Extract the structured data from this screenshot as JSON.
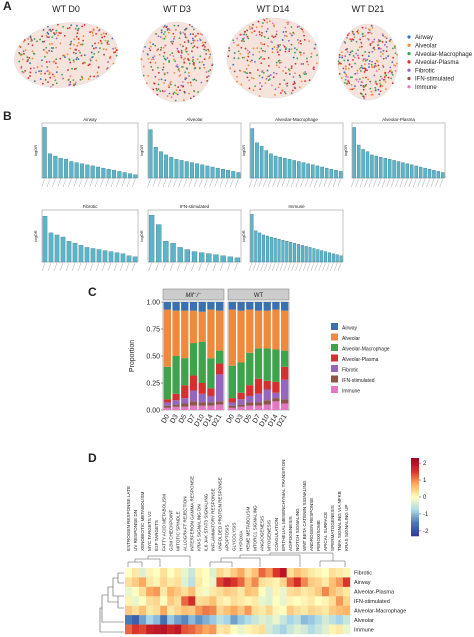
{
  "panel_labels": [
    "A",
    "B",
    "C",
    "D"
  ],
  "panel_a": {
    "titles": [
      "WT D0",
      "WT D3",
      "WT D14",
      "WT D21"
    ],
    "legend": [
      {
        "name": "Airway",
        "color": "#3a6fb0"
      },
      {
        "name": "Alveolar",
        "color": "#ef8a3c"
      },
      {
        "name": "Alveolar-Macrophage",
        "color": "#3fa34d"
      },
      {
        "name": "Alveolar-Plasma",
        "color": "#d62f2f"
      },
      {
        "name": "Fibrotic",
        "color": "#9467bd"
      },
      {
        "name": "IFN-stimulated",
        "color": "#8c564b"
      },
      {
        "name": "Immune",
        "color": "#e377c2"
      }
    ]
  },
  "chart_data": [
    {
      "type": "bar",
      "title": "Airway",
      "y_label": "logOR",
      "color": "#5bb5c8",
      "ylim": [
        0,
        5
      ],
      "values": [
        4.6,
        2.2,
        2.0,
        1.8,
        1.7,
        1.5,
        1.4,
        1.3,
        1.2,
        1.1,
        1.0,
        0.9,
        0.8,
        0.7,
        0.6,
        0.5,
        0.4,
        0.3
      ]
    },
    {
      "type": "bar",
      "title": "Alveolar",
      "y_label": "logOR",
      "color": "#5bb5c8",
      "ylim": [
        0,
        5
      ],
      "values": [
        4.4,
        2.8,
        2.4,
        2.1,
        1.9,
        1.7,
        1.6,
        1.5,
        1.4,
        1.3,
        1.2,
        1.1,
        1.0,
        0.9,
        0.8,
        0.7,
        0.6,
        0.5
      ]
    },
    {
      "type": "bar",
      "title": "Alveolar-Macrophage",
      "y_label": "logOR",
      "color": "#5bb5c8",
      "ylim": [
        0,
        5
      ],
      "values": [
        4.5,
        3.2,
        2.9,
        2.5,
        2.2,
        2.0,
        1.9,
        1.8,
        1.7,
        1.6,
        1.5,
        1.4,
        1.3,
        1.2,
        1.1,
        1.0,
        0.9,
        0.8,
        0.7,
        0.6
      ]
    },
    {
      "type": "bar",
      "title": "Alveolar-Plasma",
      "y_label": "logOR",
      "color": "#5bb5c8",
      "ylim": [
        0,
        5
      ],
      "values": [
        4.6,
        3.0,
        2.6,
        2.4,
        2.1,
        2.0,
        1.9,
        1.8,
        1.7,
        1.6,
        1.5,
        1.4,
        1.3,
        1.2,
        1.1,
        1.0,
        0.9,
        0.8,
        0.7,
        0.6,
        0.5
      ]
    },
    {
      "type": "bar",
      "title": "Fibrotic",
      "y_label": "logOR",
      "color": "#5bb5c8",
      "ylim": [
        0,
        5
      ],
      "values": [
        4.4,
        2.8,
        2.6,
        2.4,
        2.0,
        1.8,
        1.6,
        1.4,
        1.3,
        1.2,
        1.1,
        1.0,
        0.9,
        0.8,
        0.6,
        0.5
      ]
    },
    {
      "type": "bar",
      "title": "IFN-stimulated",
      "y_label": "logOR",
      "color": "#5bb5c8",
      "ylim": [
        0,
        5
      ],
      "values": [
        4.5,
        3.6,
        2.0,
        1.8,
        1.4,
        1.2,
        1.0,
        0.9,
        0.8,
        0.7,
        0.6,
        0.5,
        0.4
      ]
    },
    {
      "type": "bar",
      "title": "Immune",
      "y_label": "logOR",
      "color": "#5bb5c8",
      "ylim": [
        0,
        5
      ],
      "values": [
        4.6,
        3.0,
        2.8,
        2.6,
        2.5,
        2.4,
        2.3,
        2.2,
        2.1,
        2.0,
        1.9,
        1.8,
        1.7,
        1.6,
        1.5,
        1.4,
        1.3,
        1.2,
        1.1,
        1.0,
        0.9,
        0.8,
        0.7,
        0.6
      ]
    },
    {
      "type": "stacked_bar",
      "y_label": "Proportion",
      "facets": [
        "Mif⁻/⁻",
        "WT"
      ],
      "categories": [
        "D0",
        "D3",
        "D5",
        "D7",
        "D10",
        "D14",
        "D21",
        "D0",
        "D3",
        "D5",
        "D7",
        "D10",
        "D14",
        "D21"
      ],
      "ylim": [
        0,
        1
      ],
      "yticks": [
        {
          "value": 0,
          "label": "0.00"
        },
        {
          "value": 0.25,
          "label": "0.25"
        },
        {
          "value": 0.5,
          "label": "0.50"
        },
        {
          "value": 0.75,
          "label": "0.75"
        },
        {
          "value": 1,
          "label": "1.00"
        }
      ],
      "series": [
        {
          "name": "Airway",
          "color": "#3a6fb0",
          "values": [
            0.07,
            0.08,
            0.08,
            0.08,
            0.09,
            0.07,
            0.08,
            0.07,
            0.08,
            0.07,
            0.08,
            0.08,
            0.07,
            0.08
          ]
        },
        {
          "name": "Alveolar",
          "color": "#ef8a3c",
          "values": [
            0.53,
            0.42,
            0.44,
            0.3,
            0.28,
            0.45,
            0.37,
            0.52,
            0.48,
            0.4,
            0.35,
            0.35,
            0.37,
            0.37
          ]
        },
        {
          "name": "Alveolar-Macrophage",
          "color": "#3fa34d",
          "values": [
            0.3,
            0.35,
            0.25,
            0.3,
            0.38,
            0.28,
            0.12,
            0.3,
            0.28,
            0.3,
            0.28,
            0.3,
            0.3,
            0.15
          ]
        },
        {
          "name": "Alveolar-Plasma",
          "color": "#d62f2f",
          "values": [
            0.03,
            0.06,
            0.12,
            0.14,
            0.1,
            0.07,
            0.1,
            0.04,
            0.06,
            0.1,
            0.14,
            0.08,
            0.1,
            0.12
          ]
        },
        {
          "name": "Fibrotic",
          "color": "#9467bd",
          "values": [
            0.03,
            0.04,
            0.05,
            0.1,
            0.08,
            0.06,
            0.25,
            0.03,
            0.05,
            0.06,
            0.08,
            0.1,
            0.05,
            0.18
          ]
        },
        {
          "name": "IFN-stimulated",
          "color": "#8c564b",
          "values": [
            0.02,
            0.02,
            0.03,
            0.04,
            0.03,
            0.03,
            0.03,
            0.02,
            0.02,
            0.03,
            0.03,
            0.04,
            0.03,
            0.04
          ]
        },
        {
          "name": "Immune",
          "color": "#e377c2",
          "values": [
            0.02,
            0.03,
            0.03,
            0.04,
            0.04,
            0.04,
            0.05,
            0.02,
            0.03,
            0.04,
            0.04,
            0.05,
            0.08,
            0.06
          ]
        }
      ]
    },
    {
      "type": "heatmap",
      "clim": [
        -2.3,
        2.3
      ],
      "cticks": [
        2,
        1,
        0,
        -1,
        -2
      ],
      "columns": [
        "ESTROGEN RESPONSE LATE",
        "UV RESPONSE DN",
        "XENOBIOTIC METABOLISM",
        "MYC TARGETS V2",
        "E2F TARGETS",
        "FATTY ACID METABOLISM",
        "G2M CHECKPOINT",
        "MITOTIC SPINDLE",
        "ALLOGRAFT REJECTION",
        "INTERFERON GAMMA RESPONSE",
        "KRAS SIGNALING DN",
        "IL6 JAK STAT3 SIGNALING",
        "INFLAMMATORY RESPONSE",
        "UNFOLDED PROTEIN RESPONSE",
        "APOPTOSIS",
        "GLYCOLYSIS",
        "HYPOXIA",
        "HEME METABOLISM",
        "MTORC1 SIGNALING",
        "ANGIOGENESIS",
        "MYOGENESIS",
        "COAGULATION",
        "EPITHELIAL MESENCHYMAL TRANSITION",
        "ADIPOGENESIS",
        "NOTCH SIGNALING",
        "WNT BETA CATENIN SIGNALING",
        "ANDROGEN RESPONSE",
        "PEROXISOME",
        "APICAL SURFACE",
        "SPERMATOGENESIS",
        "TNFA SIGNALING VIA NFKB",
        "KRAS SIGNALING UP"
      ],
      "rows": [
        "Fibrotic",
        "Airway",
        "Alveolar-Plasma",
        "IFN-stimulated",
        "Alveolar-Macrophage",
        "Alveolar",
        "Immune"
      ],
      "values": [
        [
          0,
          0.2,
          -0.3,
          0.1,
          0,
          0.3,
          0,
          0.2,
          -0.2,
          -0.5,
          0.1,
          0,
          -0.3,
          0.4,
          0.2,
          0.5,
          0.8,
          0.3,
          0.6,
          1.2,
          0.9,
          1.5,
          2,
          0.3,
          0.6,
          0.4,
          0.2,
          0.1,
          0,
          0.3,
          0.2,
          0.1
        ],
        [
          0.3,
          0.5,
          0.8,
          0.2,
          0.1,
          0.4,
          0.2,
          0.3,
          -0.3,
          -0.6,
          0.2,
          0,
          -0.2,
          1.4,
          1.8,
          1.5,
          1.2,
          0.6,
          1.0,
          0.3,
          0.2,
          0.1,
          0.4,
          1.2,
          1.6,
          1.0,
          0.5,
          0.4,
          0.2,
          0.6,
          0.9,
          1.5
        ],
        [
          -0.2,
          0,
          0.3,
          0.8,
          0.9,
          0.2,
          0.7,
          0.5,
          0.3,
          0.6,
          0.1,
          -0.1,
          0.2,
          0.3,
          0.5,
          0.4,
          0.2,
          0.6,
          0.5,
          0,
          -0.3,
          0.1,
          -0.2,
          0.3,
          0.4,
          0.2,
          0.3,
          0.5,
          1.0,
          0.6,
          0.4,
          0.2
        ],
        [
          0.1,
          -0.2,
          0,
          0.3,
          0.4,
          0,
          0.5,
          0.3,
          1.2,
          1.6,
          0.3,
          0.4,
          0.6,
          0.2,
          0.1,
          0.3,
          0.2,
          0.1,
          0.2,
          -0.2,
          -0.3,
          0,
          -0.2,
          0.1,
          0,
          0.1,
          0.2,
          0,
          0.1,
          0.3,
          0.9,
          0.4
        ],
        [
          0.5,
          0.3,
          0.6,
          0.2,
          0.3,
          0.8,
          0.2,
          0.4,
          0.6,
          0.5,
          0.9,
          1.1,
          1.0,
          0.4,
          0.6,
          0.8,
          0.5,
          0.9,
          0.3,
          0.2,
          0.4,
          0.1,
          0,
          0.5,
          0.3,
          0.2,
          0.4,
          0.3,
          0.2,
          0.5,
          0.6,
          0.7
        ],
        [
          -1.5,
          -1.8,
          -1.2,
          -0.8,
          -1.0,
          -1.6,
          -0.9,
          -1.2,
          -1.4,
          -1.0,
          -1.3,
          -1.1,
          -0.9,
          -0.6,
          -0.8,
          -1.2,
          -0.9,
          -0.7,
          -0.5,
          -0.3,
          -0.4,
          -0.2,
          -0.5,
          -0.8,
          -0.6,
          -1.0,
          -0.9,
          -0.7,
          -0.4,
          -0.6,
          -0.8,
          -0.5
        ],
        [
          1.2,
          1.5,
          1.4,
          1.8,
          1.9,
          2.0,
          1.7,
          1.9,
          1.3,
          1.2,
          1.0,
          0.8,
          0.9,
          0.2,
          0.3,
          0,
          -0.2,
          0.1,
          0.2,
          0.3,
          -0.4,
          -0.6,
          -0.8,
          -0.5,
          -0.3,
          -0.4,
          -0.7,
          -0.5,
          -0.3,
          0.1,
          0.2,
          -0.2
        ]
      ]
    }
  ]
}
